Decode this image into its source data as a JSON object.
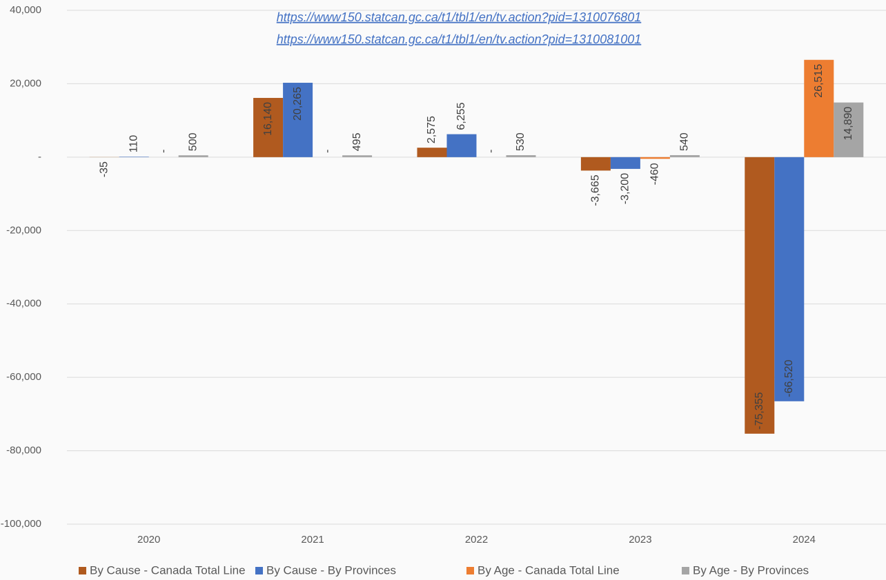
{
  "chart_data": {
    "type": "bar",
    "annotations": [
      "https://www150.statcan.gc.ca/t1/tbl1/en/tv.action?pid=1310076801",
      "https://www150.statcan.gc.ca/t1/tbl1/en/tv.action?pid=1310081001"
    ],
    "categories": [
      "2020",
      "2021",
      "2022",
      "2023",
      "2024"
    ],
    "series": [
      {
        "name": "By Cause - Canada Total Line",
        "color": "#b05a1f",
        "values": [
          -35,
          16140,
          2575,
          -3665,
          -75355
        ],
        "value_labels": [
          "-35",
          "16,140",
          "2,575",
          "-3,665",
          "-75,355"
        ]
      },
      {
        "name": "By Cause - By Provinces",
        "color": "#4472c4",
        "values": [
          110,
          20265,
          6255,
          -3200,
          -66520
        ],
        "value_labels": [
          "110",
          "20,265",
          "6,255",
          "-3,200",
          "-66,520"
        ]
      },
      {
        "name": "By Age - Canada Total Line",
        "color": "#ed7d31",
        "values": [
          0,
          0,
          0,
          -460,
          26515
        ],
        "value_labels": [
          "-",
          "-",
          "-",
          "-460",
          "26,515"
        ]
      },
      {
        "name": "By Age - By Provinces",
        "color": "#a5a5a5",
        "values": [
          500,
          495,
          530,
          540,
          14890
        ],
        "value_labels": [
          "500",
          "495",
          "530",
          "540",
          "14,890"
        ]
      }
    ],
    "ylim": [
      -100000,
      40000
    ],
    "yticks": [
      {
        "value": -100000,
        "label": "-100,000"
      },
      {
        "value": -80000,
        "label": "-80,000"
      },
      {
        "value": -60000,
        "label": "-60,000"
      },
      {
        "value": -40000,
        "label": "-40,000"
      },
      {
        "value": -20000,
        "label": "-20,000"
      },
      {
        "value": 0,
        "label": "-"
      },
      {
        "value": 20000,
        "label": "20,000"
      },
      {
        "value": 40000,
        "label": "40,000"
      }
    ],
    "grid": true,
    "legend": "bottom"
  }
}
